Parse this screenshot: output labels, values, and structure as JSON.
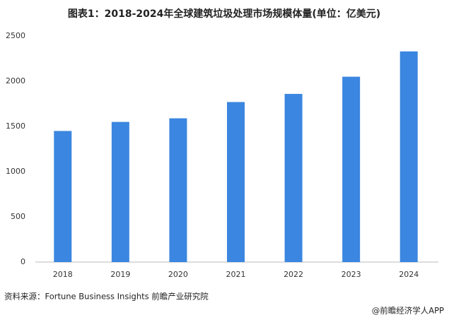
{
  "chart_data": {
    "type": "bar",
    "title": "图表1：2018-2024年全球建筑垃圾处理市场规模体量(单位：亿美元)",
    "categories": [
      "2018",
      "2019",
      "2020",
      "2021",
      "2022",
      "2023",
      "2024"
    ],
    "values": [
      1450,
      1550,
      1590,
      1770,
      1860,
      2050,
      2330
    ],
    "color": "#3b86e0",
    "ylim": [
      0,
      2500
    ],
    "yticks": [
      0,
      500,
      1000,
      1500,
      2000,
      2500
    ],
    "grid": false,
    "source": "资料来源：Fortune Business Insights 前瞻产业研究院",
    "footer": "@前瞻经济学人APP"
  }
}
